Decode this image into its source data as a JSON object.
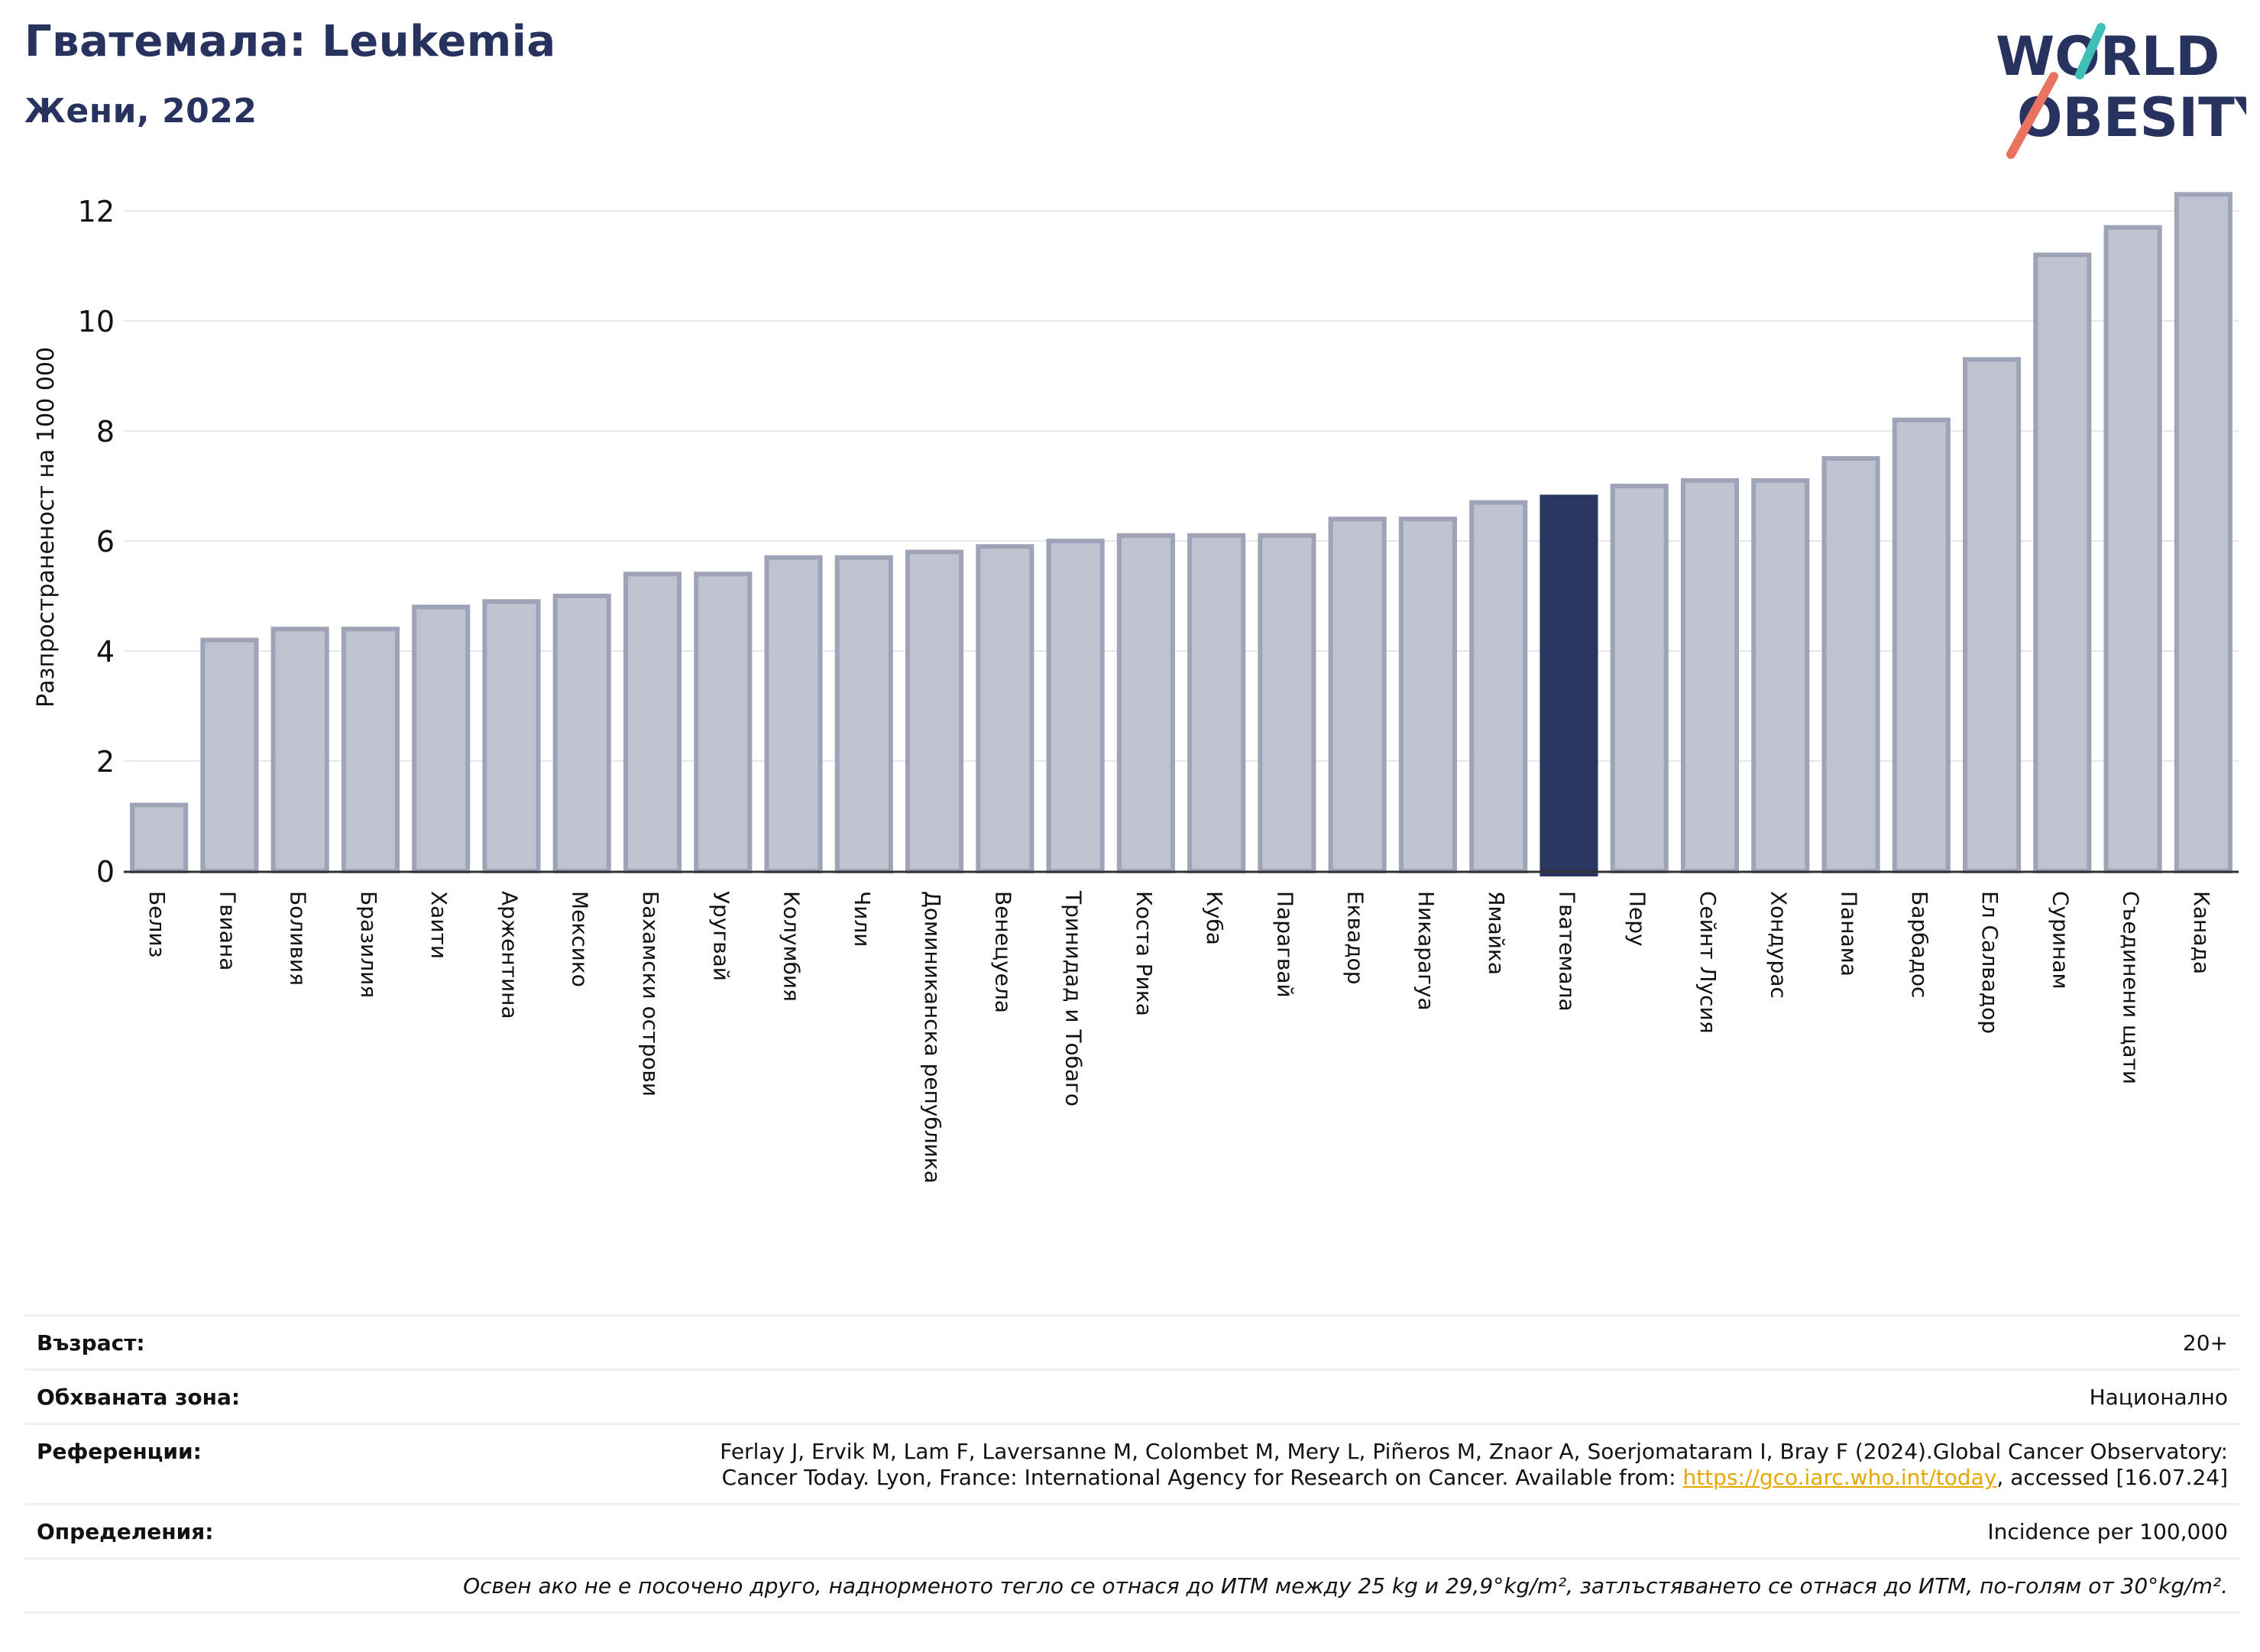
{
  "header": {
    "title": "Гватемала: Leukemia",
    "subtitle": "Жени, 2022"
  },
  "logo": {
    "line1": "WORLD",
    "line2": "OBESITY"
  },
  "colors": {
    "bar": "#bfc2cf",
    "bar_border": "#9ea3b8",
    "highlight": "#2a3561",
    "grid": "#e6e7ec",
    "axis": "#333333",
    "logo_text": "#27325f",
    "logo_teal": "#3fbfb6",
    "logo_coral": "#e8735f",
    "link": "#e6a700"
  },
  "chart_data": {
    "type": "bar",
    "title": "Гватемала: Leukemia",
    "subtitle": "Жени, 2022",
    "xlabel": "",
    "ylabel": "Разпространеност  на 100 000",
    "ylim": [
      0,
      12.5
    ],
    "yticks": [
      0,
      2,
      4,
      6,
      8,
      10,
      12
    ],
    "grid": true,
    "highlight": "Гватемала",
    "categories": [
      "Белиз",
      "Гвиана",
      "Боливия",
      "Бразилия",
      "Хаити",
      "Аржентина",
      "Мексико",
      "Бахамски острови",
      "Уругвай",
      "Колумбия",
      "Чили",
      "Доминиканска република",
      "Венецуела",
      "Тринидад и Тобаго",
      "Коста Рика",
      "Куба",
      "Парагвай",
      "Еквадор",
      "Никарагуа",
      "Ямайка",
      "Гватемала",
      "Перу",
      "Сейнт Лусия",
      "Хондурас",
      "Панама",
      "Барбадос",
      "Ел Салвадор",
      "Суринам",
      "Съединени щати",
      "Канада"
    ],
    "values": [
      1.2,
      4.2,
      4.4,
      4.4,
      4.8,
      4.9,
      5.0,
      5.4,
      5.4,
      5.7,
      5.7,
      5.8,
      5.9,
      6.0,
      6.1,
      6.1,
      6.1,
      6.4,
      6.4,
      6.7,
      6.8,
      7.0,
      7.1,
      7.1,
      7.5,
      8.2,
      9.3,
      11.2,
      11.7,
      12.3
    ]
  },
  "meta": {
    "age_label": "Възраст:",
    "age_value": "20+",
    "coverage_label": "Обхваната зона:",
    "coverage_value": "Национално",
    "references_label": "Референции:",
    "references_text_1": "Ferlay J, Ervik M, Lam F, Laversanne M, Colombet M, Mery L, Piñeros M, Znaor A, Soerjomataram I, Bray F (2024).Global Cancer Observatory:",
    "references_text_2": "Cancer Today. Lyon, France: International Agency for Research on Cancer. Available from: ",
    "references_link": "https://gco.iarc.who.int/today",
    "references_text_3": ", accessed [16.07.24]",
    "definitions_label": "Определения:",
    "definitions_value": "Incidence per 100,000",
    "note": "Освен ако не е посочено друго, наднорменото тегло се отнася до ИТМ между 25 kg и 29,9°kg/m², затлъстяването се отнася до ИТМ, по-голям от 30°kg/m²."
  }
}
